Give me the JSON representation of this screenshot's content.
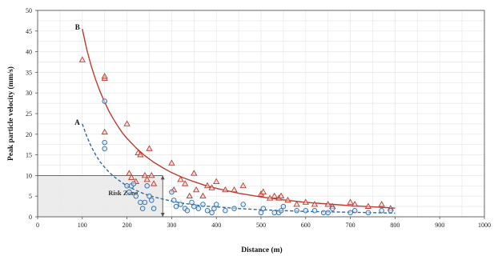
{
  "chart_data": {
    "type": "scatter",
    "xlabel": "Distance (m)",
    "ylabel": "Peak particle velocity (mm/s)",
    "xlim": [
      0,
      1000
    ],
    "ylim": [
      0,
      50
    ],
    "x_ticks": [
      "0",
      "100",
      "200",
      "300",
      "400",
      "500",
      "600",
      "700",
      "800",
      "900",
      "1000"
    ],
    "y_ticks": [
      "0",
      "5",
      "10",
      "15",
      "20",
      "25",
      "30",
      "35",
      "40",
      "45",
      "50"
    ],
    "grid": true,
    "risk_zone": {
      "label": "Risk Zone",
      "x_max": 280,
      "y_max": 10
    },
    "colors": {
      "series_b": "#c0392b",
      "series_a": "#2e6da4",
      "grid": "#e6e6e6",
      "risk_fill": "#e9e9e9",
      "risk_edge": "#555555"
    },
    "series": [
      {
        "name": "B",
        "marker": "triangle",
        "curve_style": "solid",
        "points": [
          [
            100,
            38
          ],
          [
            150,
            33.5
          ],
          [
            150,
            34
          ],
          [
            150,
            20.5
          ],
          [
            200,
            22.5
          ],
          [
            205,
            10.5
          ],
          [
            210,
            9.5
          ],
          [
            220,
            8.5
          ],
          [
            225,
            15.5
          ],
          [
            230,
            15
          ],
          [
            240,
            10
          ],
          [
            245,
            9
          ],
          [
            250,
            16.5
          ],
          [
            255,
            10
          ],
          [
            260,
            8
          ],
          [
            300,
            13
          ],
          [
            305,
            6.5
          ],
          [
            320,
            9
          ],
          [
            330,
            8
          ],
          [
            340,
            5
          ],
          [
            350,
            10.5
          ],
          [
            355,
            6.5
          ],
          [
            370,
            5
          ],
          [
            380,
            7.5
          ],
          [
            390,
            7
          ],
          [
            400,
            8.5
          ],
          [
            420,
            6.5
          ],
          [
            440,
            6.5
          ],
          [
            460,
            7.5
          ],
          [
            500,
            5.5
          ],
          [
            505,
            6
          ],
          [
            520,
            4.5
          ],
          [
            530,
            5
          ],
          [
            540,
            4.5
          ],
          [
            545,
            5
          ],
          [
            560,
            4
          ],
          [
            580,
            3
          ],
          [
            600,
            3.5
          ],
          [
            620,
            3
          ],
          [
            650,
            3
          ],
          [
            660,
            2.5
          ],
          [
            700,
            3.5
          ],
          [
            710,
            3
          ],
          [
            740,
            2.5
          ],
          [
            770,
            3
          ],
          [
            790,
            2
          ]
        ],
        "curve": [
          [
            100,
            45.5
          ],
          [
            110,
            40.5
          ],
          [
            120,
            36.5
          ],
          [
            130,
            33.2
          ],
          [
            140,
            30.3
          ],
          [
            150,
            27.8
          ],
          [
            160,
            25.5
          ],
          [
            170,
            23.6
          ],
          [
            180,
            21.9
          ],
          [
            190,
            20.3
          ],
          [
            200,
            19
          ],
          [
            220,
            16.7
          ],
          [
            240,
            14.8
          ],
          [
            260,
            13.2
          ],
          [
            280,
            11.9
          ],
          [
            300,
            10.7
          ],
          [
            325,
            9.5
          ],
          [
            350,
            8.5
          ],
          [
            375,
            7.6
          ],
          [
            400,
            6.9
          ],
          [
            450,
            5.7
          ],
          [
            500,
            4.8
          ],
          [
            550,
            4.1
          ],
          [
            600,
            3.5
          ],
          [
            650,
            3.1
          ],
          [
            700,
            2.7
          ],
          [
            750,
            2.4
          ],
          [
            800,
            2.1
          ]
        ],
        "annotation": {
          "text": "B",
          "x": 100,
          "y": 45.5
        }
      },
      {
        "name": "A",
        "marker": "circle",
        "curve_style": "dashed",
        "points": [
          [
            150,
            28
          ],
          [
            150,
            18
          ],
          [
            150,
            16.5
          ],
          [
            200,
            7.5
          ],
          [
            205,
            6
          ],
          [
            210,
            7.5
          ],
          [
            215,
            8
          ],
          [
            220,
            5
          ],
          [
            230,
            3.5
          ],
          [
            235,
            2
          ],
          [
            240,
            3.5
          ],
          [
            245,
            7.5
          ],
          [
            250,
            5
          ],
          [
            255,
            4
          ],
          [
            260,
            2
          ],
          [
            300,
            6
          ],
          [
            305,
            4
          ],
          [
            310,
            2.5
          ],
          [
            320,
            3
          ],
          [
            330,
            2
          ],
          [
            335,
            1.5
          ],
          [
            345,
            3.5
          ],
          [
            350,
            2.5
          ],
          [
            360,
            2
          ],
          [
            370,
            3
          ],
          [
            380,
            1.5
          ],
          [
            390,
            1
          ],
          [
            395,
            2
          ],
          [
            400,
            3
          ],
          [
            420,
            1.5
          ],
          [
            440,
            2
          ],
          [
            460,
            3
          ],
          [
            500,
            1
          ],
          [
            505,
            2
          ],
          [
            530,
            1
          ],
          [
            540,
            1
          ],
          [
            545,
            1.5
          ],
          [
            550,
            2.5
          ],
          [
            580,
            1.5
          ],
          [
            600,
            1.5
          ],
          [
            620,
            1.5
          ],
          [
            640,
            1
          ],
          [
            650,
            1
          ],
          [
            660,
            2
          ],
          [
            700,
            1
          ],
          [
            710,
            1.5
          ],
          [
            740,
            1
          ],
          [
            770,
            1.5
          ],
          [
            790,
            1.5
          ]
        ],
        "curve": [
          [
            100,
            22.5
          ],
          [
            110,
            19.5
          ],
          [
            120,
            17
          ],
          [
            130,
            15
          ],
          [
            140,
            13.3
          ],
          [
            150,
            12
          ],
          [
            160,
            10.8
          ],
          [
            170,
            9.8
          ],
          [
            180,
            9
          ],
          [
            190,
            8.2
          ],
          [
            200,
            7.5
          ],
          [
            220,
            6.4
          ],
          [
            240,
            5.5
          ],
          [
            260,
            4.8
          ],
          [
            280,
            4.3
          ],
          [
            300,
            3.8
          ],
          [
            325,
            3.3
          ],
          [
            350,
            2.9
          ],
          [
            375,
            2.6
          ],
          [
            400,
            2.4
          ],
          [
            450,
            2
          ],
          [
            500,
            1.7
          ],
          [
            550,
            1.5
          ],
          [
            600,
            1.3
          ],
          [
            650,
            1.2
          ],
          [
            700,
            1.1
          ],
          [
            750,
            1
          ],
          [
            800,
            0.9
          ]
        ],
        "annotation": {
          "text": "A",
          "x": 100,
          "y": 22.5
        }
      }
    ]
  }
}
